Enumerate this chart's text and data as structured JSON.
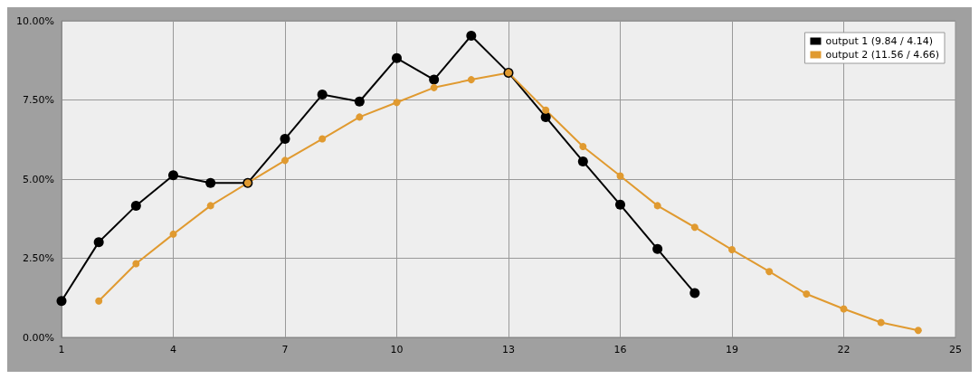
{
  "chart_data": {
    "type": "line",
    "xlim": [
      1,
      25
    ],
    "xticks": [
      1,
      4,
      7,
      10,
      13,
      16,
      19,
      22,
      25
    ],
    "ylim": [
      0,
      10
    ],
    "yticks": [
      {
        "value": 0,
        "label": "0.00%"
      },
      {
        "value": 2.5,
        "label": "2.50%"
      },
      {
        "value": 5,
        "label": "5.00%"
      },
      {
        "value": 7.5,
        "label": "7.50%"
      },
      {
        "value": 10,
        "label": "10.00%"
      }
    ],
    "grid": true,
    "legend": "top right",
    "marker": "circle",
    "line_style": "solid",
    "series": [
      {
        "name": "output 1 (9.84 / 4.14)",
        "color": "#000000",
        "x": [
          1,
          2,
          3,
          4,
          5,
          6,
          7,
          8,
          9,
          10,
          11,
          12,
          13,
          14,
          15,
          16,
          17,
          18
        ],
        "values": [
          1.15,
          3.01,
          4.16,
          5.12,
          4.88,
          4.88,
          6.27,
          7.67,
          7.45,
          8.82,
          8.14,
          9.53,
          8.36,
          6.96,
          5.56,
          4.19,
          2.79,
          1.4
        ]
      },
      {
        "name": "output 2 (11.56 / 4.66)",
        "color": "#e09a30",
        "x": [
          2,
          3,
          4,
          5,
          6,
          7,
          8,
          9,
          10,
          11,
          12,
          13,
          14,
          15,
          16,
          17,
          18,
          19,
          20,
          21,
          22,
          23,
          24
        ],
        "values": [
          1.15,
          2.33,
          3.26,
          4.16,
          4.88,
          5.59,
          6.27,
          6.96,
          7.42,
          7.89,
          8.14,
          8.36,
          7.18,
          6.03,
          5.1,
          4.16,
          3.48,
          2.77,
          2.08,
          1.37,
          0.9,
          0.47,
          0.22
        ]
      }
    ]
  }
}
